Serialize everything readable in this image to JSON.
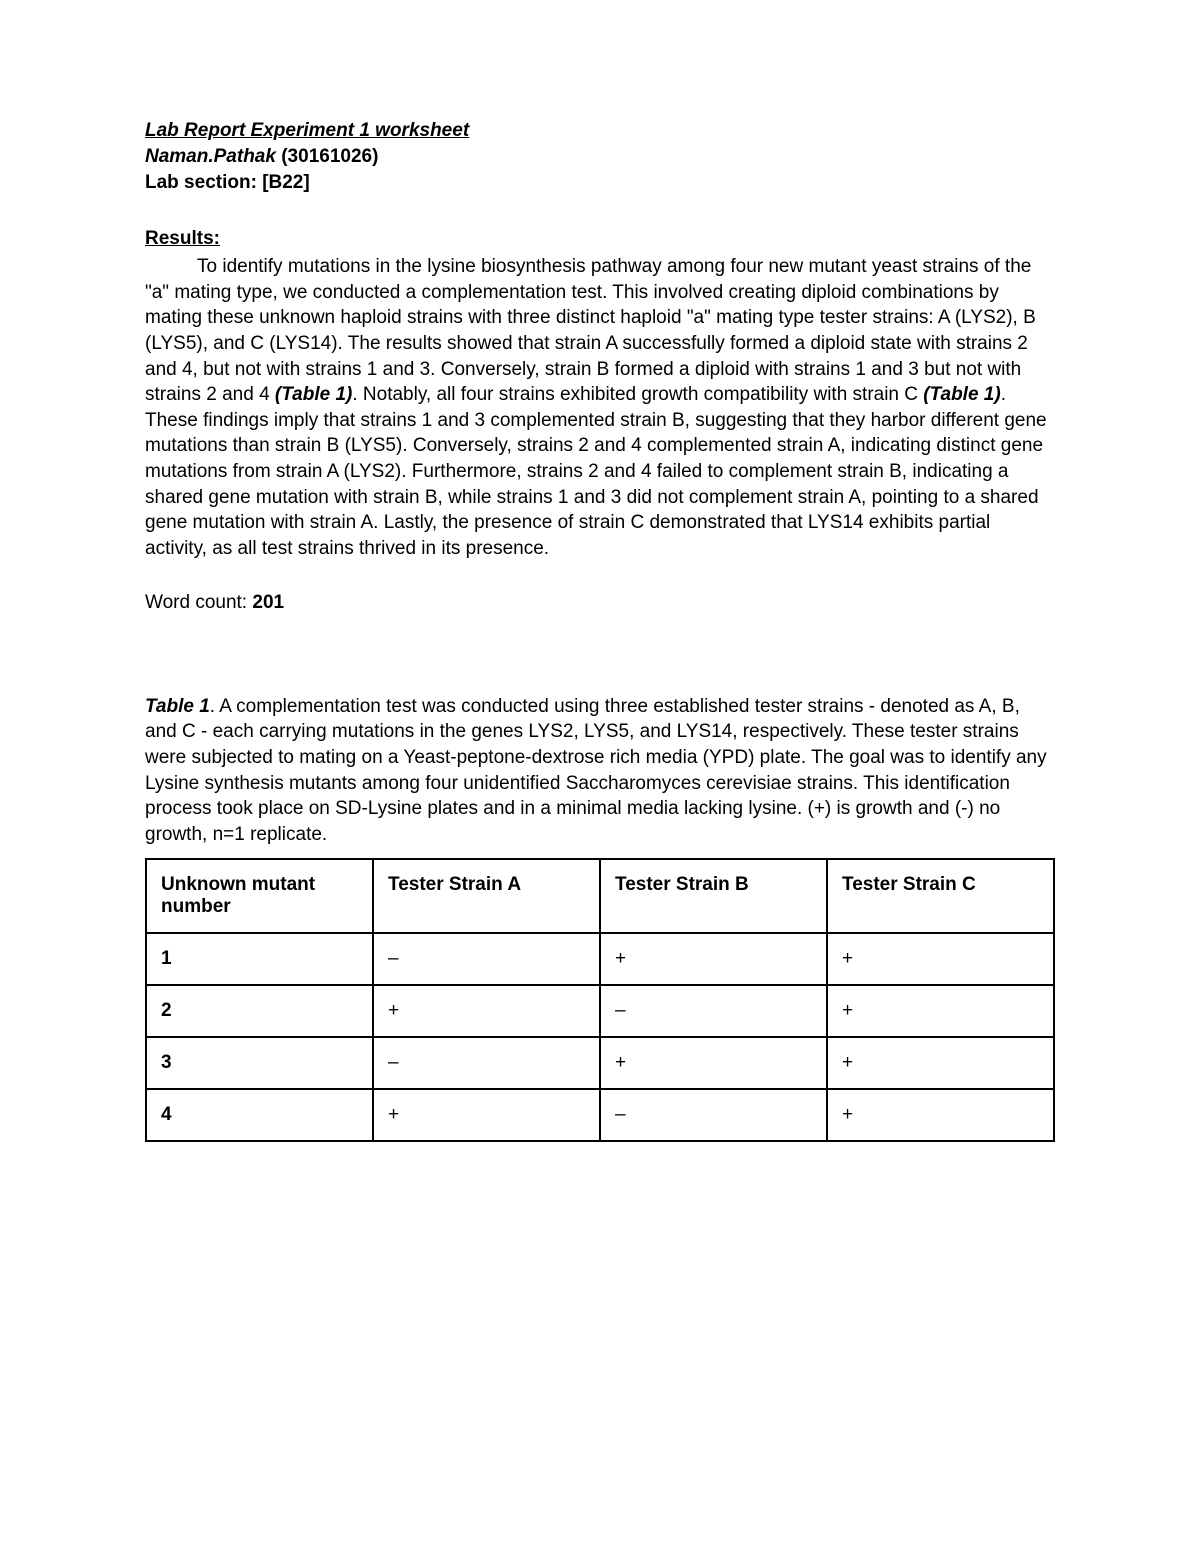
{
  "header": {
    "title": "Lab Report Experiment 1 worksheet",
    "author_name": "Naman.Pathak",
    "author_id": "(30161026)",
    "lab_section_label": "Lab section:",
    "lab_section_value": "[B22]"
  },
  "results": {
    "heading": "Results:",
    "para_pre": "To identify mutations in the lysine biosynthesis pathway among four new mutant yeast strains of the \"a\" mating type, we conducted a complementation test. This involved creating diploid combinations by mating these unknown haploid strains with three distinct haploid \"a\" mating type tester strains: A (LYS2), B (LYS5), and C (LYS14). The results showed that strain A successfully formed a diploid state with strains 2 and 4, but not with strains 1 and 3. Conversely, strain B formed a diploid with strains 1 and 3 but not with strains 2 and 4 ",
    "table_ref_1": "(Table 1)",
    "para_mid": ". Notably, all four strains exhibited growth compatibility with strain C ",
    "table_ref_2": "(Table 1)",
    "para_post": ". These findings imply that strains 1 and 3 complemented strain B, suggesting that they harbor different gene mutations than strain B (LYS5). Conversely, strains 2 and 4 complemented strain A, indicating distinct gene mutations from strain A (LYS2). Furthermore, strains 2 and 4 failed to complement strain B, indicating a shared gene mutation with strain B, while strains 1 and 3 did not complement strain A, pointing to a shared gene mutation with strain A. Lastly, the presence of strain C demonstrated that LYS14 exhibits partial activity, as all test strains thrived in its presence."
  },
  "word_count": {
    "label": "Word count: ",
    "value": "201"
  },
  "table_caption": {
    "label": "Table 1",
    "text": ". A complementation test was conducted using three established tester strains - denoted as A, B, and C - each carrying mutations in the genes LYS2, LYS5, and LYS14, respectively. These tester strains were subjected to mating on a Yeast-peptone-dextrose rich media (YPD) plate. The goal was to identify any Lysine synthesis mutants among four unidentified Saccharomyces cerevisiae strains. This identification process took place on SD-Lysine plates and in a minimal media lacking lysine. (+) is growth and (-) no growth, n=1 replicate."
  },
  "table": {
    "columns": [
      "Unknown mutant number",
      "Tester Strain A",
      "Tester Strain B",
      "Tester Strain C"
    ],
    "rows": [
      [
        "1",
        "–",
        "+",
        "+"
      ],
      [
        "2",
        "+",
        "–",
        "+"
      ],
      [
        "3",
        "–",
        "+",
        "+"
      ],
      [
        "4",
        "+",
        "–",
        "+"
      ]
    ],
    "border_color": "#000000",
    "cell_fontsize": 19,
    "header_fontweight": "bold"
  },
  "colors": {
    "background": "#ffffff",
    "text": "#000000"
  }
}
